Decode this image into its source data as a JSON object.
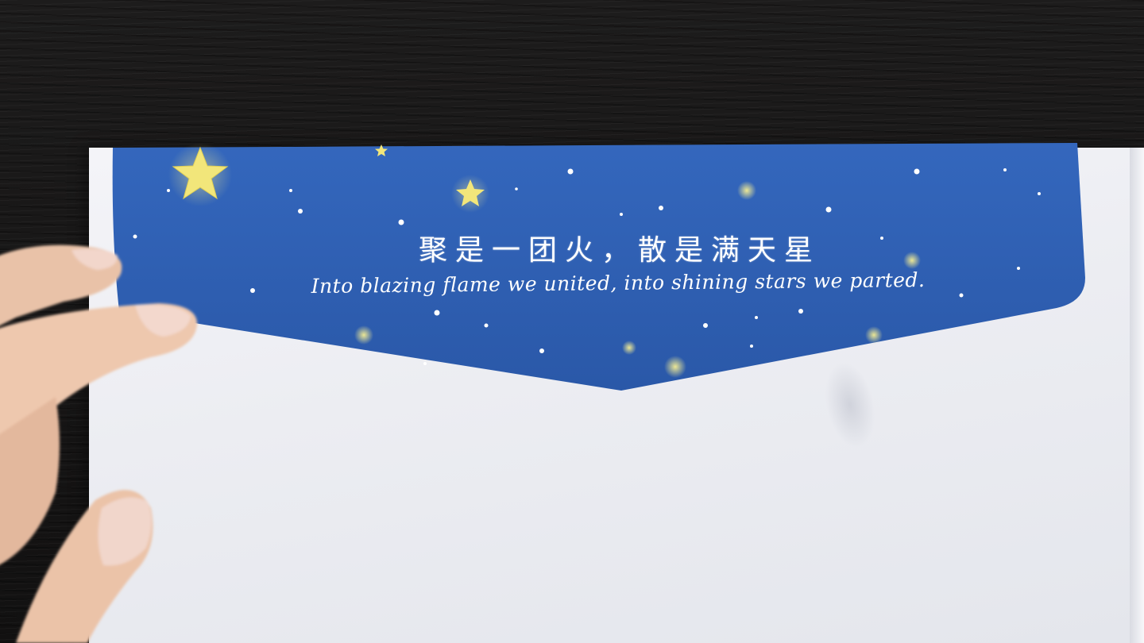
{
  "envelope": {
    "flap_color": "#2f5fb4",
    "flap_color_dark": "#244d9b",
    "star_color": "#f3e77a",
    "text_cn": "聚是一团火，散是满天星",
    "text_en": "Into blazing flame we united, into shining stars we parted."
  }
}
